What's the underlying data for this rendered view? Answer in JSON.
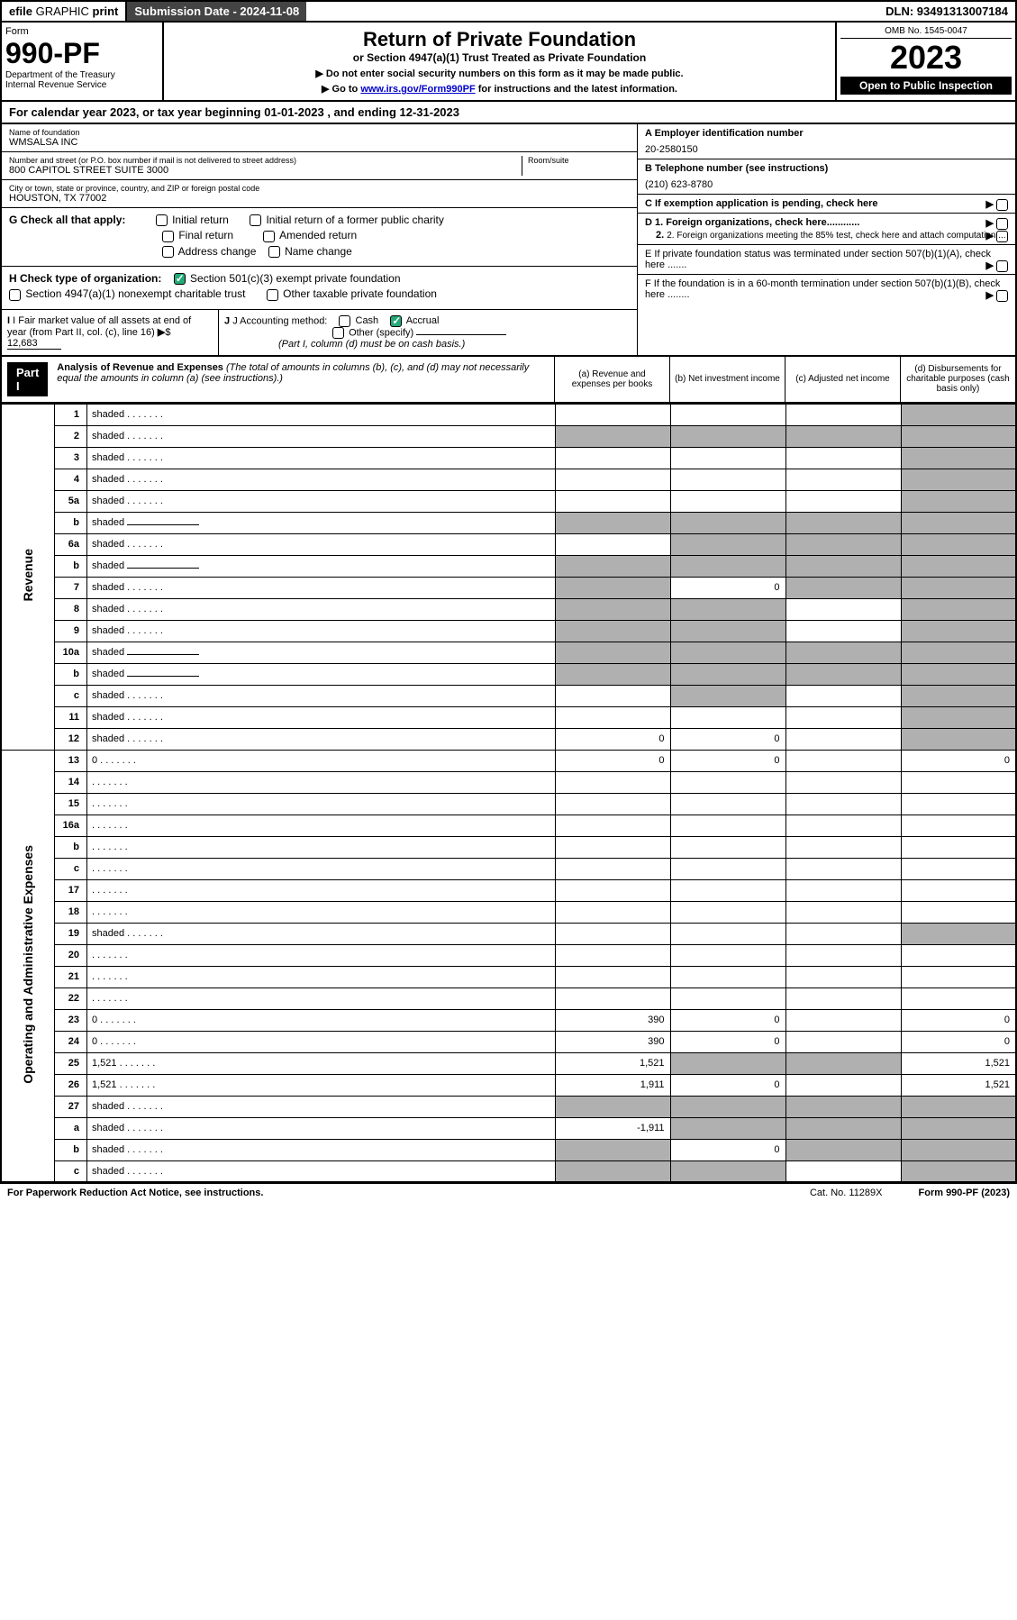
{
  "topbar": {
    "efile_prefix": "efile",
    "efile_graphic": "GRAPHIC",
    "efile_print": "print",
    "submission_label": "Submission Date - 2024-11-08",
    "dln": "DLN: 93491313007184"
  },
  "header": {
    "form_label": "Form",
    "form_number": "990-PF",
    "dept": "Department of the Treasury",
    "irs": "Internal Revenue Service",
    "title": "Return of Private Foundation",
    "subtitle": "or Section 4947(a)(1) Trust Treated as Private Foundation",
    "instr1": "▶ Do not enter social security numbers on this form as it may be made public.",
    "instr2_prefix": "▶ Go to ",
    "instr2_link": "www.irs.gov/Form990PF",
    "instr2_suffix": " for instructions and the latest information.",
    "omb": "OMB No. 1545-0047",
    "year": "2023",
    "inspection": "Open to Public Inspection"
  },
  "calyear": "For calendar year 2023, or tax year beginning 01-01-2023                               , and ending 12-31-2023",
  "foundation": {
    "name_label": "Name of foundation",
    "name": "WMSALSA INC",
    "addr_label": "Number and street (or P.O. box number if mail is not delivered to street address)",
    "addr": "800 CAPITOL STREET SUITE 3000",
    "room_label": "Room/suite",
    "city_label": "City or town, state or province, country, and ZIP or foreign postal code",
    "city": "HOUSTON, TX  77002",
    "ein_label": "A Employer identification number",
    "ein": "20-2580150",
    "phone_label": "B Telephone number (see instructions)",
    "phone": "(210) 623-8780",
    "c_label": "C If exemption application is pending, check here"
  },
  "checks": {
    "g_label": "G Check all that apply:",
    "g_items": [
      "Initial return",
      "Initial return of a former public charity",
      "Final return",
      "Amended return",
      "Address change",
      "Name change"
    ],
    "h_label": "H Check type of organization:",
    "h_501c3": "Section 501(c)(3) exempt private foundation",
    "h_4947": "Section 4947(a)(1) nonexempt charitable trust",
    "h_other": "Other taxable private foundation",
    "i_label": "I Fair market value of all assets at end of year (from Part II, col. (c), line 16)",
    "i_value": "12,683",
    "j_label": "J Accounting method:",
    "j_cash": "Cash",
    "j_accrual": "Accrual",
    "j_other": "Other (specify)",
    "j_note": "(Part I, column (d) must be on cash basis.)"
  },
  "right_items": {
    "d1": "D 1. Foreign organizations, check here............",
    "d2": "2. Foreign organizations meeting the 85% test, check here and attach computation ...",
    "e": "E  If private foundation status was terminated under section 507(b)(1)(A), check here .......",
    "f": "F  If the foundation is in a 60-month termination under section 507(b)(1)(B), check here ........"
  },
  "part1": {
    "label": "Part I",
    "title": "Analysis of Revenue and Expenses",
    "note": "(The total of amounts in columns (b), (c), and (d) may not necessarily equal the amounts in column (a) (see instructions).)",
    "col_a": "(a)  Revenue and expenses per books",
    "col_b": "(b)  Net investment income",
    "col_c": "(c)  Adjusted net income",
    "col_d": "(d)  Disbursements for charitable purposes (cash basis only)"
  },
  "side_labels": {
    "revenue": "Revenue",
    "expenses": "Operating and Administrative Expenses"
  },
  "rows": [
    {
      "n": "1",
      "d": "shaded",
      "a": "",
      "b": "",
      "c": "",
      "side": "rev",
      "rowspan": 14
    },
    {
      "n": "2",
      "d": "shaded",
      "a": "shaded",
      "b": "shaded",
      "c": "shaded"
    },
    {
      "n": "3",
      "d": "shaded",
      "a": "",
      "b": "",
      "c": ""
    },
    {
      "n": "4",
      "d": "shaded",
      "a": "",
      "b": "",
      "c": ""
    },
    {
      "n": "5a",
      "d": "shaded",
      "a": "",
      "b": "",
      "c": ""
    },
    {
      "n": "b",
      "d": "shaded",
      "a": "shaded",
      "b": "shaded",
      "c": "shaded",
      "inline": true
    },
    {
      "n": "6a",
      "d": "shaded",
      "a": "",
      "b": "shaded",
      "c": "shaded"
    },
    {
      "n": "b",
      "d": "shaded",
      "a": "shaded",
      "b": "shaded",
      "c": "shaded",
      "inline": true
    },
    {
      "n": "7",
      "d": "shaded",
      "a": "shaded",
      "b": "0",
      "c": "shaded"
    },
    {
      "n": "8",
      "d": "shaded",
      "a": "shaded",
      "b": "shaded",
      "c": ""
    },
    {
      "n": "9",
      "d": "shaded",
      "a": "shaded",
      "b": "shaded",
      "c": ""
    },
    {
      "n": "10a",
      "d": "shaded",
      "a": "shaded",
      "b": "shaded",
      "c": "shaded",
      "inline": true
    },
    {
      "n": "b",
      "d": "shaded",
      "a": "shaded",
      "b": "shaded",
      "c": "shaded",
      "inline": true
    },
    {
      "n": "c",
      "d": "shaded",
      "a": "",
      "b": "shaded",
      "c": ""
    },
    {
      "n": "11",
      "d": "shaded",
      "a": "",
      "b": "",
      "c": ""
    },
    {
      "n": "12",
      "d": "shaded",
      "a": "0",
      "b": "0",
      "c": ""
    },
    {
      "n": "13",
      "d": "0",
      "a": "0",
      "b": "0",
      "c": "",
      "side": "exp",
      "rowspan": 18
    },
    {
      "n": "14",
      "d": "",
      "a": "",
      "b": "",
      "c": ""
    },
    {
      "n": "15",
      "d": "",
      "a": "",
      "b": "",
      "c": ""
    },
    {
      "n": "16a",
      "d": "",
      "a": "",
      "b": "",
      "c": ""
    },
    {
      "n": "b",
      "d": "",
      "a": "",
      "b": "",
      "c": ""
    },
    {
      "n": "c",
      "d": "",
      "a": "",
      "b": "",
      "c": ""
    },
    {
      "n": "17",
      "d": "",
      "a": "",
      "b": "",
      "c": ""
    },
    {
      "n": "18",
      "d": "",
      "a": "",
      "b": "",
      "c": ""
    },
    {
      "n": "19",
      "d": "shaded",
      "a": "",
      "b": "",
      "c": ""
    },
    {
      "n": "20",
      "d": "",
      "a": "",
      "b": "",
      "c": ""
    },
    {
      "n": "21",
      "d": "",
      "a": "",
      "b": "",
      "c": ""
    },
    {
      "n": "22",
      "d": "",
      "a": "",
      "b": "",
      "c": ""
    },
    {
      "n": "23",
      "d": "0",
      "a": "390",
      "b": "0",
      "c": ""
    },
    {
      "n": "24",
      "d": "0",
      "a": "390",
      "b": "0",
      "c": ""
    },
    {
      "n": "25",
      "d": "1,521",
      "a": "1,521",
      "b": "shaded",
      "c": "shaded"
    },
    {
      "n": "26",
      "d": "1,521",
      "a": "1,911",
      "b": "0",
      "c": ""
    },
    {
      "n": "27",
      "d": "shaded",
      "a": "shaded",
      "b": "shaded",
      "c": "shaded"
    },
    {
      "n": "a",
      "d": "shaded",
      "a": "-1,911",
      "b": "shaded",
      "c": "shaded"
    },
    {
      "n": "b",
      "d": "shaded",
      "a": "shaded",
      "b": "0",
      "c": "shaded"
    },
    {
      "n": "c",
      "d": "shaded",
      "a": "shaded",
      "b": "shaded",
      "c": ""
    }
  ],
  "footer": {
    "left": "For Paperwork Reduction Act Notice, see instructions.",
    "mid": "Cat. No. 11289X",
    "right": "Form 990-PF (2023)"
  }
}
